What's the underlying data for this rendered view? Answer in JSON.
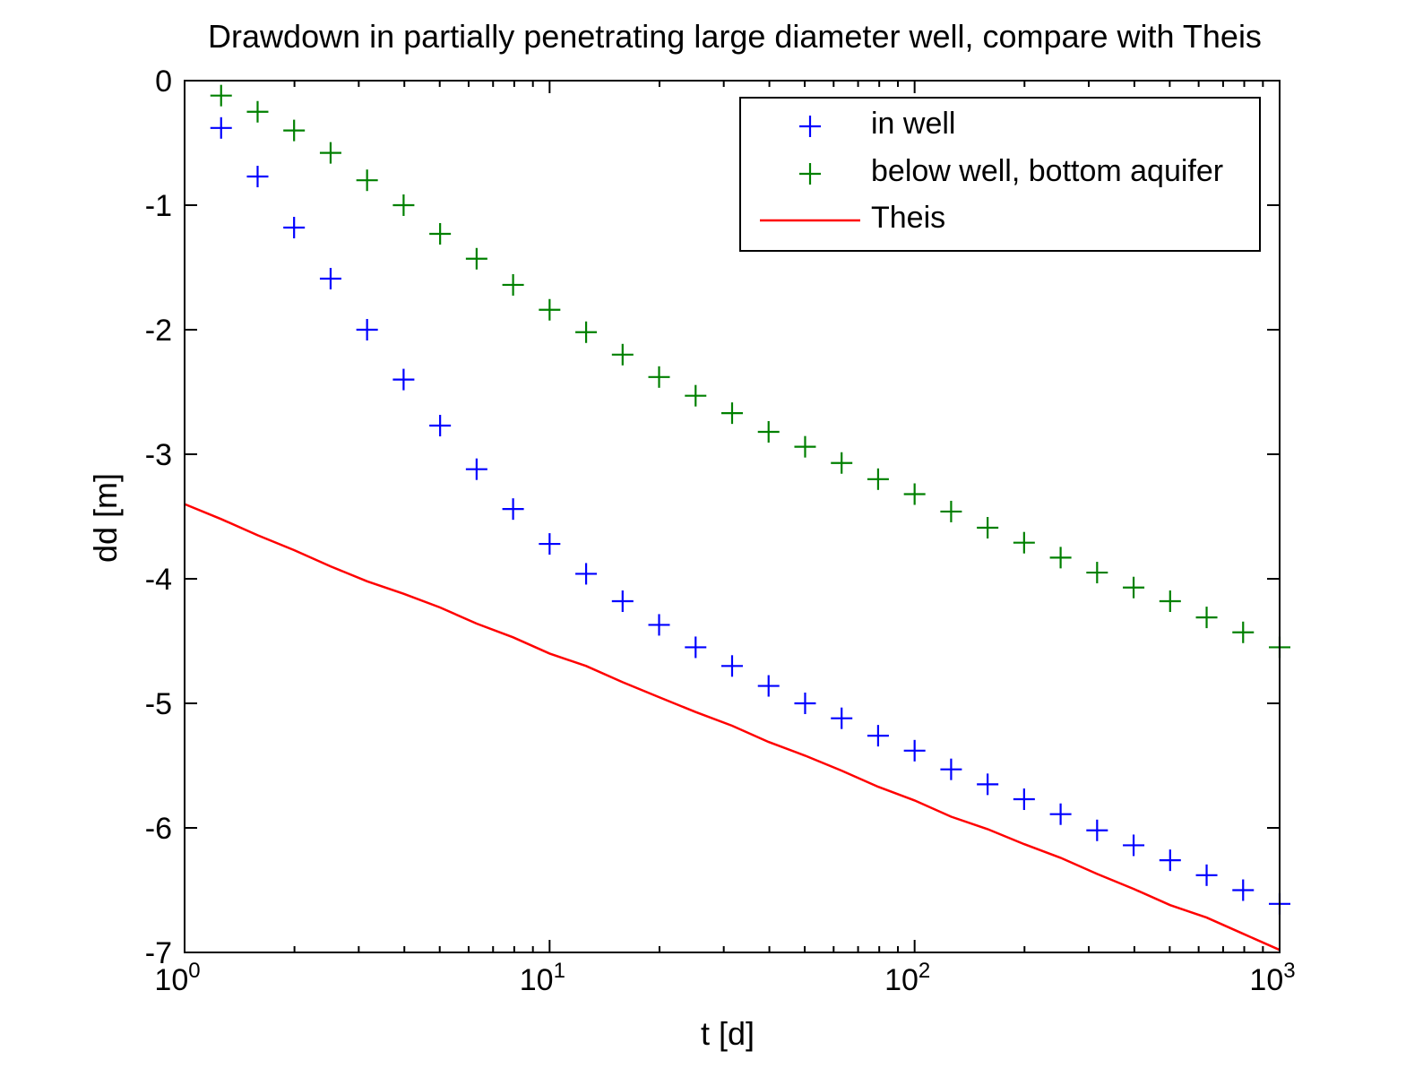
{
  "chart_data": {
    "type": "scatter",
    "title": "Drawdown in partially penetrating large diameter well, compare with Theis",
    "xlabel": "t [d]",
    "ylabel": "dd [m]",
    "xscale": "log",
    "xlim": [
      1,
      1000
    ],
    "ylim": [
      -7,
      0
    ],
    "grid": false,
    "legend_position": "top-right",
    "x_ticks": [
      {
        "value": 1,
        "base": "10",
        "exp": "0"
      },
      {
        "value": 10,
        "base": "10",
        "exp": "1"
      },
      {
        "value": 100,
        "base": "10",
        "exp": "2"
      },
      {
        "value": 1000,
        "base": "10",
        "exp": "3"
      }
    ],
    "y_ticks": [
      {
        "value": 0,
        "label": "0"
      },
      {
        "value": -1,
        "label": "-1"
      },
      {
        "value": -2,
        "label": "-2"
      },
      {
        "value": -3,
        "label": "-3"
      },
      {
        "value": -4,
        "label": "-4"
      },
      {
        "value": -5,
        "label": "-5"
      },
      {
        "value": -6,
        "label": "-6"
      },
      {
        "value": -7,
        "label": "-7"
      }
    ],
    "series": [
      {
        "name": "in well",
        "style": "marker",
        "color": "#0000ff",
        "x": [
          1.259,
          1.585,
          1.995,
          2.512,
          3.162,
          3.981,
          5.012,
          6.31,
          7.943,
          10,
          12.59,
          15.85,
          19.95,
          25.12,
          31.62,
          39.81,
          50.12,
          63.1,
          79.43,
          100,
          125.9,
          158.5,
          199.5,
          251.2,
          316.2,
          398.1,
          501.2,
          631,
          794.3,
          1000
        ],
        "y": [
          -0.38,
          -0.77,
          -1.18,
          -1.59,
          -2.0,
          -2.4,
          -2.77,
          -3.12,
          -3.44,
          -3.72,
          -3.96,
          -4.18,
          -4.37,
          -4.55,
          -4.7,
          -4.86,
          -5.0,
          -5.12,
          -5.26,
          -5.38,
          -5.53,
          -5.65,
          -5.77,
          -5.89,
          -6.02,
          -6.14,
          -6.26,
          -6.38,
          -6.5,
          -6.61
        ]
      },
      {
        "name": "below well, bottom aquifer",
        "style": "marker",
        "color": "#008000",
        "x": [
          1.259,
          1.585,
          1.995,
          2.512,
          3.162,
          3.981,
          5.012,
          6.31,
          7.943,
          10,
          12.59,
          15.85,
          19.95,
          25.12,
          31.62,
          39.81,
          50.12,
          63.1,
          79.43,
          100,
          125.9,
          158.5,
          199.5,
          251.2,
          316.2,
          398.1,
          501.2,
          631,
          794.3,
          1000
        ],
        "y": [
          -0.12,
          -0.25,
          -0.4,
          -0.58,
          -0.8,
          -1.0,
          -1.23,
          -1.43,
          -1.64,
          -1.84,
          -2.02,
          -2.2,
          -2.38,
          -2.53,
          -2.67,
          -2.82,
          -2.94,
          -3.07,
          -3.2,
          -3.32,
          -3.46,
          -3.59,
          -3.71,
          -3.83,
          -3.95,
          -4.07,
          -4.18,
          -4.31,
          -4.43,
          -4.55
        ]
      },
      {
        "name": "Theis",
        "style": "line",
        "color": "#ff0000",
        "x": [
          1,
          1.259,
          1.585,
          1.995,
          2.512,
          3.162,
          3.981,
          5.012,
          6.31,
          7.943,
          10,
          12.59,
          15.85,
          19.95,
          25.12,
          31.62,
          39.81,
          50.12,
          63.1,
          79.43,
          100,
          125.9,
          158.5,
          199.5,
          251.2,
          316.2,
          398.1,
          501.2,
          631,
          794.3,
          1000
        ],
        "y": [
          -3.4,
          -3.52,
          -3.65,
          -3.77,
          -3.9,
          -4.02,
          -4.12,
          -4.23,
          -4.36,
          -4.47,
          -4.6,
          -4.7,
          -4.83,
          -4.95,
          -5.07,
          -5.18,
          -5.31,
          -5.42,
          -5.54,
          -5.67,
          -5.78,
          -5.91,
          -6.01,
          -6.13,
          -6.24,
          -6.37,
          -6.49,
          -6.62,
          -6.72,
          -6.85,
          -6.98
        ]
      }
    ]
  }
}
